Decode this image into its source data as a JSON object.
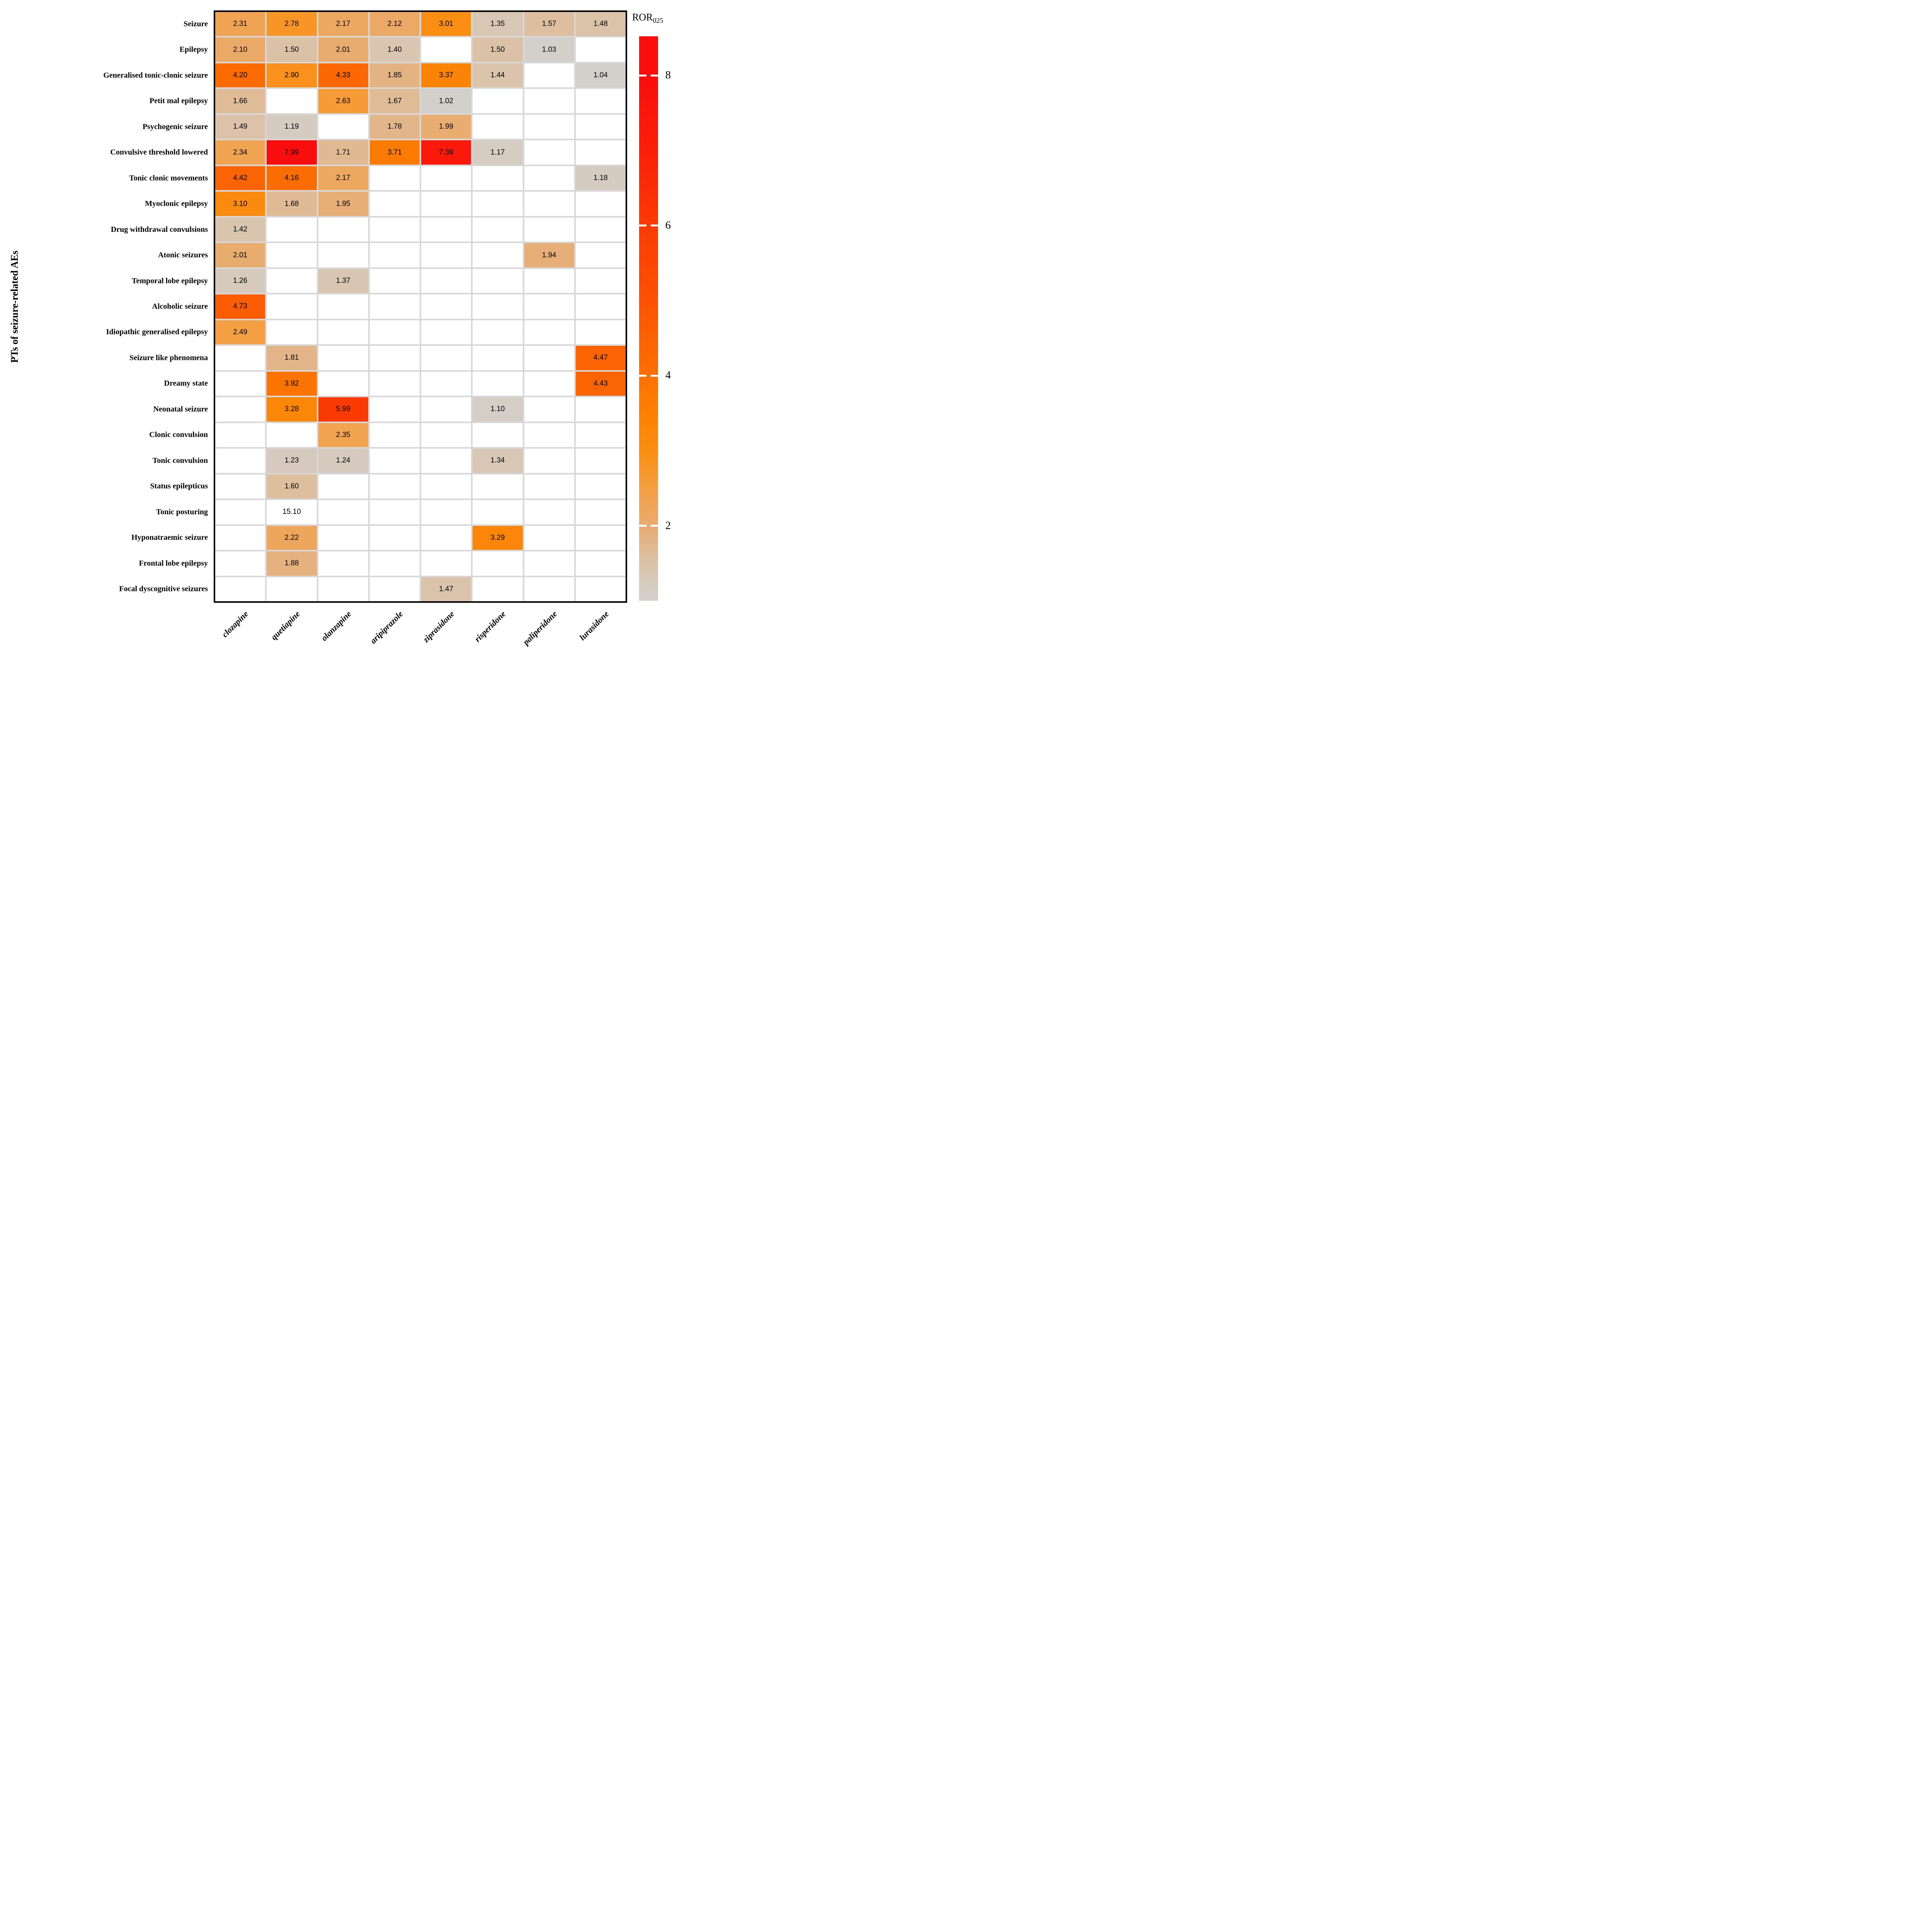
{
  "figure": {
    "y_axis_title": "PTs of seizure-related AEs",
    "legend": {
      "title_main": "ROR",
      "title_sub": "025",
      "ticks": [
        8,
        6,
        4,
        2
      ],
      "domain_min": 1.0,
      "domain_max": 8.52,
      "overflow_color": "#ffffff",
      "empty_color": "#ffffff",
      "grid_line_color": "#d8d8d8",
      "border_color": "#000000",
      "colorscale": [
        {
          "value": 1.0,
          "color": "#d3d0cd"
        },
        {
          "value": 1.25,
          "color": "#d6cabd"
        },
        {
          "value": 1.5,
          "color": "#dbc2a7"
        },
        {
          "value": 1.75,
          "color": "#e1b78e"
        },
        {
          "value": 2.0,
          "color": "#e9ac70"
        },
        {
          "value": 2.5,
          "color": "#f49f42"
        },
        {
          "value": 3.0,
          "color": "#fa8e12"
        },
        {
          "value": 3.5,
          "color": "#fb8102"
        },
        {
          "value": 4.0,
          "color": "#fb7102"
        },
        {
          "value": 4.5,
          "color": "#fb6203"
        },
        {
          "value": 5.0,
          "color": "#fb5203"
        },
        {
          "value": 6.0,
          "color": "#fb3a03"
        },
        {
          "value": 7.0,
          "color": "#fa2008"
        },
        {
          "value": 8.0,
          "color": "#f90d0d"
        },
        {
          "value": 8.52,
          "color": "#f90d0d"
        }
      ]
    }
  },
  "chart_data": {
    "type": "heatmap",
    "x_categories": [
      "clozapine",
      "quetiapine",
      "olanzapine",
      "aripiprazole",
      "ziprasidone",
      "risperidone",
      "paliperidone",
      "lurasidone"
    ],
    "y_categories": [
      "Seizure",
      "Epilepsy",
      "Generalised tonic-clonic seizure",
      "Petit mal epilepsy",
      "Psychogenic seizure",
      "Convulsive threshold lowered",
      "Tonic clonic movements",
      "Myoclonic epilepsy",
      "Drug withdrawal convulsions",
      "Atonic seizures",
      "Temporal lobe epilepsy",
      "Alcoholic seizure",
      "Idiopathic generalised epilepsy",
      "Seizure like phenomena",
      "Dreamy state",
      "Neonatal seizure",
      "Clonic convulsion",
      "Tonic convulsion",
      "Status epilepticus",
      "Tonic posturing",
      "Hyponatraemic seizure",
      "Frontal lobe epilepsy",
      "Focal dyscognitive seizures"
    ],
    "values": [
      [
        2.31,
        2.78,
        2.17,
        2.12,
        3.01,
        1.35,
        1.57,
        1.48
      ],
      [
        2.1,
        1.5,
        2.01,
        1.4,
        null,
        1.5,
        1.03,
        null
      ],
      [
        4.2,
        2.9,
        4.33,
        1.85,
        3.37,
        1.44,
        null,
        1.04
      ],
      [
        1.66,
        null,
        2.63,
        1.67,
        1.02,
        null,
        null,
        null
      ],
      [
        1.49,
        1.19,
        null,
        1.78,
        1.99,
        null,
        null,
        null
      ],
      [
        2.34,
        7.99,
        1.71,
        3.71,
        7.39,
        1.17,
        null,
        null
      ],
      [
        4.42,
        4.16,
        2.17,
        null,
        null,
        null,
        null,
        1.18
      ],
      [
        3.1,
        1.68,
        1.95,
        null,
        null,
        null,
        null,
        null
      ],
      [
        1.42,
        null,
        null,
        null,
        null,
        null,
        null,
        null
      ],
      [
        2.01,
        null,
        null,
        null,
        null,
        null,
        1.94,
        null
      ],
      [
        1.26,
        null,
        1.37,
        null,
        null,
        null,
        null,
        null
      ],
      [
        4.73,
        null,
        null,
        null,
        null,
        null,
        null,
        null
      ],
      [
        2.49,
        null,
        null,
        null,
        null,
        null,
        null,
        null
      ],
      [
        null,
        1.81,
        null,
        null,
        null,
        null,
        null,
        4.47
      ],
      [
        null,
        3.92,
        null,
        null,
        null,
        null,
        null,
        4.43
      ],
      [
        null,
        3.28,
        5.99,
        null,
        null,
        1.1,
        null,
        null
      ],
      [
        null,
        null,
        2.35,
        null,
        null,
        null,
        null,
        null
      ],
      [
        null,
        1.23,
        1.24,
        null,
        null,
        1.34,
        null,
        null
      ],
      [
        null,
        1.6,
        null,
        null,
        null,
        null,
        null,
        null
      ],
      [
        null,
        15.1,
        null,
        null,
        null,
        null,
        null,
        null
      ],
      [
        null,
        2.22,
        null,
        null,
        null,
        3.29,
        null,
        null
      ],
      [
        null,
        1.88,
        null,
        null,
        null,
        null,
        null,
        null
      ],
      [
        null,
        null,
        null,
        null,
        1.47,
        null,
        null,
        null
      ]
    ],
    "value_decimals": 2,
    "legend_position": "right",
    "grid": true
  }
}
